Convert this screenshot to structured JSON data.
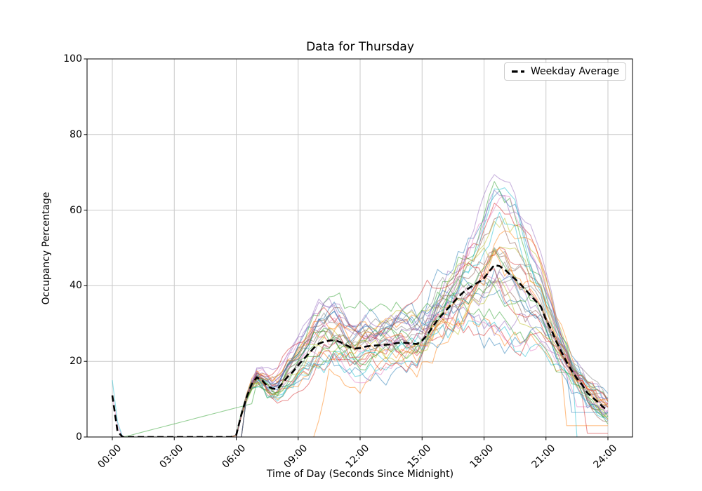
{
  "figure": {
    "title": "Data for Thursday",
    "background_color": "#ffffff"
  },
  "axes": {
    "xlabel": "Time of Day (Seconds Since Midnight)",
    "ylabel": "Occupancy Percentage",
    "x_tick_labels": [
      "00:00",
      "03:00",
      "06:00",
      "09:00",
      "12:00",
      "15:00",
      "18:00",
      "21:00",
      "24:00"
    ],
    "x_tick_hours": [
      0,
      3,
      6,
      9,
      12,
      15,
      18,
      21,
      24
    ],
    "y_tick_labels": [
      "0",
      "20",
      "40",
      "60",
      "80",
      "100"
    ],
    "y_tick_values": [
      0,
      20,
      40,
      60,
      80,
      100
    ],
    "ylim": [
      0,
      100
    ],
    "xlim_hours": [
      -1.22,
      25.19
    ],
    "grid": true,
    "grid_color": "#c9c9c9",
    "spine_color": "#000000"
  },
  "legend": {
    "label": "Weekday Average",
    "line_color": "#000000",
    "line_style": "dashed",
    "location": "upper right"
  },
  "chart_data": {
    "type": "line",
    "title": "Data for Thursday",
    "xlabel": "Time of Day (Seconds Since Midnight)",
    "ylabel": "Occupancy Percentage",
    "x_unit": "hours since midnight, ticks rendered as HH:MM",
    "x_start_hour": 0,
    "x_step_hours": 0.25,
    "n_points": 97,
    "ylim": [
      0,
      100
    ],
    "average_series": {
      "name": "Weekday Average",
      "color": "#000000",
      "linestyle": "--",
      "linewidth": 2.6,
      "values": [
        11,
        1.5,
        0,
        0,
        0,
        0,
        0,
        0,
        0,
        0,
        0,
        0,
        0,
        0,
        0,
        0,
        0,
        0,
        0,
        0,
        0,
        0,
        0,
        0,
        0.5,
        6,
        10.5,
        14,
        15.8,
        15,
        13.5,
        12.8,
        12.7,
        14.3,
        16,
        17.3,
        19,
        20.5,
        22,
        23.5,
        24.7,
        25.2,
        25.5,
        25.6,
        25.2,
        24.5,
        23.8,
        23.4,
        23.5,
        23.9,
        24.1,
        24.2,
        24.3,
        24.4,
        24.5,
        24.8,
        25,
        24.9,
        24.7,
        24.6,
        25.5,
        27,
        29,
        31,
        32.5,
        34,
        35.5,
        37,
        38.3,
        39.3,
        40.2,
        41,
        42,
        43.8,
        45.5,
        45.2,
        44.3,
        43,
        41.8,
        40.5,
        39,
        37.5,
        36,
        34.5,
        31,
        28.5,
        25.2,
        22.5,
        19.8,
        17.5,
        15.5,
        13.8,
        11.7,
        10.5,
        9.3,
        8,
        7
      ]
    },
    "individual_lines": {
      "count": 35,
      "alpha": 0.5,
      "linewidth": 1.1,
      "color_cycle": [
        "#1f77b4",
        "#ff7f0e",
        "#2ca02c",
        "#d62728",
        "#9467bd",
        "#8c564b",
        "#e377c2",
        "#7f7f7f",
        "#bcbd22",
        "#17becf"
      ],
      "seed": 1234,
      "description": "Approximately 35 semi-transparent daily occupancy traces. All sit at 0% from ~00:30 to ~06:00, rise steeply at 06:00 to 10-25%, dip slightly near 08:00, plateau around 15-38% from 10:00-15:00, climb to individual evening peaks between ~20% and ~73% around 18:00-19:30, then fall to 0-10% by 24:00.",
      "peak_value_range": [
        20,
        73
      ],
      "peak_time_range_hours": [
        18,
        19.5
      ],
      "notable_lines": [
        {
          "series_index": 9,
          "color": "#17becf",
          "feature": "spike-at-midnight",
          "points": [
            [
              0,
              15
            ],
            [
              0.25,
              4
            ],
            [
              0.5,
              0
            ]
          ]
        },
        {
          "series_index": 6,
          "color": "#e377c2",
          "feature": "spike-at-midnight",
          "points": [
            [
              0,
              11
            ],
            [
              0.25,
              3
            ],
            [
              0.5,
              0
            ]
          ]
        },
        {
          "series_index": 2,
          "color": "#2ca02c",
          "feature": "linear-rise-from-midnight-to-morning",
          "points": [
            [
              0,
              0
            ],
            [
              0.55,
              0
            ],
            [
              6.9,
              9
            ]
          ]
        },
        {
          "series_index": 1,
          "color": "#ff7f0e",
          "feature": "late-morning-onset",
          "onset_hour": 9.85,
          "plateau_factor": 0.72
        },
        {
          "series_index": 11,
          "color": "#ff7f0e",
          "feature": "flat-evening-tail",
          "flat_from_hour": 21.9,
          "flat_value": 3
        },
        {
          "series_index": 16,
          "color": "#e377c2",
          "feature": "flat-evening-tail",
          "flat_from_hour": 22.5,
          "flat_value": 8
        },
        {
          "series_index": 10,
          "color": "#1f77b4",
          "feature": "flat-evening-tail",
          "flat_from_hour": 22.2,
          "flat_value": 6.5
        },
        {
          "series_index": 13,
          "color": "#d62728",
          "feature": "flat-evening-tail",
          "flat_from_hour": 22.8,
          "flat_value": 1
        },
        {
          "series_index": 19,
          "color": "#17becf",
          "feature": "flat-evening-tail",
          "flat_from_hour": 22.4,
          "flat_value": 0
        },
        {
          "series_index": 29,
          "color": "#17becf",
          "feature": "low-evening-peak",
          "peak_factor": 0.55
        }
      ]
    },
    "legend_entries": [
      "Weekday Average"
    ],
    "legend_position": "upper right",
    "grid": true
  }
}
